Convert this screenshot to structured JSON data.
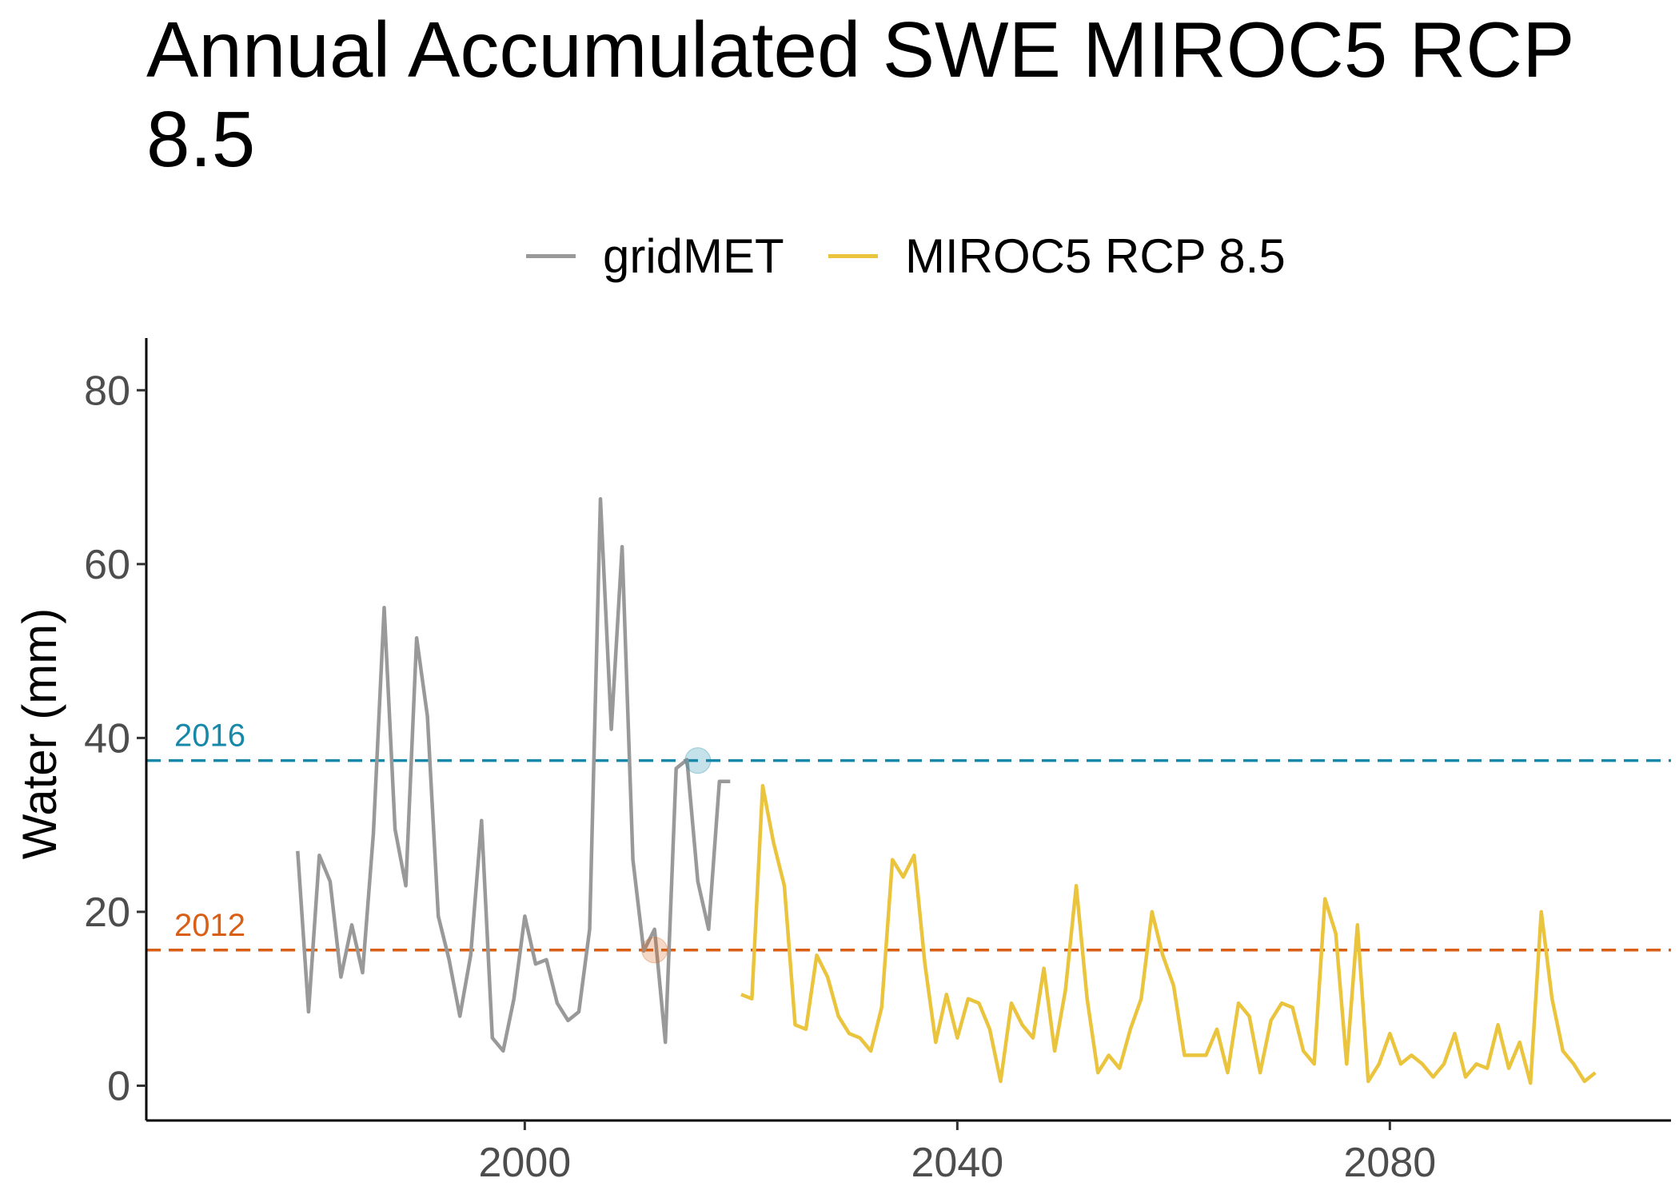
{
  "chart_data": {
    "type": "line",
    "title": "Annual Accumulated SWE MIROC5 RCP 8.5",
    "xlabel": "",
    "ylabel": "Water (mm)",
    "xlim": [
      1965,
      2106
    ],
    "ylim": [
      -4,
      86
    ],
    "x_ticks": [
      2000,
      2040,
      2080
    ],
    "y_ticks": [
      0,
      20,
      40,
      60,
      80
    ],
    "grid": false,
    "legend": "top",
    "series": [
      {
        "name": "gridMET",
        "color": "#999999",
        "x": [
          1979,
          1980,
          1981,
          1982,
          1983,
          1984,
          1985,
          1986,
          1987,
          1988,
          1989,
          1990,
          1991,
          1992,
          1993,
          1994,
          1995,
          1996,
          1997,
          1998,
          1999,
          2000,
          2001,
          2002,
          2003,
          2004,
          2005,
          2006,
          2007,
          2008,
          2009,
          2010,
          2011,
          2012,
          2013,
          2014,
          2015,
          2016,
          2017,
          2018,
          2019
        ],
        "y": [
          27.0,
          8.5,
          26.5,
          23.5,
          12.5,
          18.5,
          13.0,
          29.0,
          55.0,
          29.5,
          23.0,
          51.5,
          42.5,
          19.5,
          14.5,
          8.0,
          15.0,
          30.5,
          5.5,
          4.0,
          10.0,
          19.5,
          14.0,
          14.5,
          9.5,
          7.5,
          8.5,
          18.0,
          67.5,
          41.0,
          62.0,
          26.0,
          15.5,
          18.0,
          5.0,
          36.5,
          37.5,
          23.5,
          18.0,
          35.0,
          35.0
        ]
      },
      {
        "name": "MIROC5 RCP 8.5",
        "color": "#EAC43D",
        "x": [
          2020,
          2021,
          2022,
          2023,
          2024,
          2025,
          2026,
          2027,
          2028,
          2029,
          2030,
          2031,
          2032,
          2033,
          2034,
          2035,
          2036,
          2037,
          2038,
          2039,
          2040,
          2041,
          2042,
          2043,
          2044,
          2045,
          2046,
          2047,
          2048,
          2049,
          2050,
          2051,
          2052,
          2053,
          2054,
          2055,
          2056,
          2057,
          2058,
          2059,
          2060,
          2061,
          2062,
          2063,
          2064,
          2065,
          2066,
          2067,
          2068,
          2069,
          2070,
          2071,
          2072,
          2073,
          2074,
          2075,
          2076,
          2077,
          2078,
          2079,
          2080,
          2081,
          2082,
          2083,
          2084,
          2085,
          2086,
          2087,
          2088,
          2089,
          2090,
          2091,
          2092,
          2093,
          2094,
          2095,
          2096,
          2097,
          2098,
          2099
        ],
        "y": [
          10.5,
          10.0,
          34.5,
          28.0,
          23.0,
          7.0,
          6.5,
          15.0,
          12.5,
          8.0,
          6.0,
          5.5,
          4.0,
          9.0,
          26.0,
          24.0,
          26.5,
          14.0,
          5.0,
          10.5,
          5.5,
          10.0,
          9.5,
          6.5,
          0.5,
          9.5,
          7.0,
          5.5,
          13.5,
          4.0,
          11.0,
          23.0,
          10.0,
          1.5,
          3.5,
          2.0,
          6.5,
          10.0,
          20.0,
          15.0,
          11.5,
          3.5,
          3.5,
          3.5,
          6.5,
          1.5,
          9.5,
          8.0,
          1.5,
          7.5,
          9.5,
          9.0,
          4.0,
          2.5,
          21.5,
          17.5,
          2.5,
          18.5,
          0.5,
          2.5,
          6.0,
          2.5,
          3.5,
          2.5,
          1.0,
          2.5,
          6.0,
          1.0,
          2.5,
          2.0,
          7.0,
          2.0,
          5.0,
          0.3,
          20.0,
          10.0,
          4.0,
          2.5,
          0.5,
          1.5
        ]
      }
    ],
    "reference_lines": [
      {
        "label": "2016",
        "y": 37.4,
        "color": "#1788A8",
        "marker": {
          "x": 2016,
          "y": 37.4
        }
      },
      {
        "label": "2012",
        "y": 15.6,
        "color": "#D95F17",
        "marker": {
          "x": 2012,
          "y": 15.6
        }
      }
    ]
  }
}
